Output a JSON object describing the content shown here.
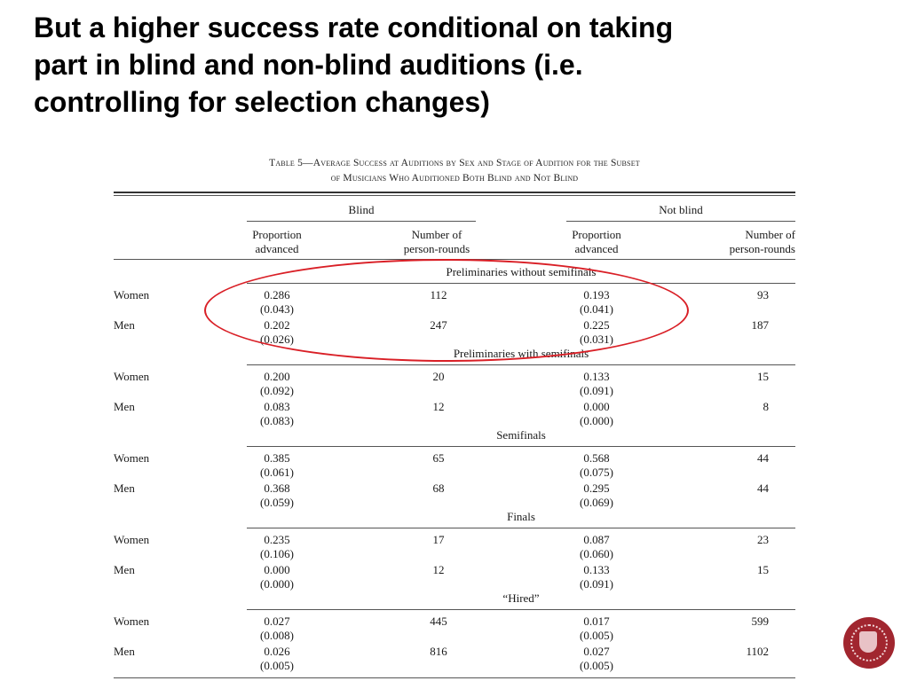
{
  "title_lines": [
    "But a higher success rate conditional on taking",
    "part in blind and non-blind auditions (i.e.",
    "controlling for selection changes)"
  ],
  "table": {
    "caption_line1": "Table 5—Average Success at Auditions by Sex and Stage of Audition for the Subset",
    "caption_line2": "of Musicians Who Auditioned Both Blind and Not Blind",
    "group_headers": {
      "blind": "Blind",
      "not_blind": "Not blind"
    },
    "col_headers": {
      "prop_line1": "Proportion",
      "prop_line2": "advanced",
      "num_line1": "Number of",
      "num_line2": "person-rounds"
    },
    "sections": [
      {
        "title": "Preliminaries without semifinals",
        "rows": [
          {
            "label": "Women",
            "blind_prop": "0.286",
            "blind_se": "(0.043)",
            "blind_n": "112",
            "nb_prop": "0.193",
            "nb_se": "(0.041)",
            "nb_n": "93"
          },
          {
            "label": "Men",
            "blind_prop": "0.202",
            "blind_se": "(0.026)",
            "blind_n": "247",
            "nb_prop": "0.225",
            "nb_se": "(0.031)",
            "nb_n": "187"
          }
        ]
      },
      {
        "title": "Preliminaries with semifinals",
        "rows": [
          {
            "label": "Women",
            "blind_prop": "0.200",
            "blind_se": "(0.092)",
            "blind_n": "20",
            "nb_prop": "0.133",
            "nb_se": "(0.091)",
            "nb_n": "15"
          },
          {
            "label": "Men",
            "blind_prop": "0.083",
            "blind_se": "(0.083)",
            "blind_n": "12",
            "nb_prop": "0.000",
            "nb_se": "(0.000)",
            "nb_n": "8"
          }
        ]
      },
      {
        "title": "Semifinals",
        "rows": [
          {
            "label": "Women",
            "blind_prop": "0.385",
            "blind_se": "(0.061)",
            "blind_n": "65",
            "nb_prop": "0.568",
            "nb_se": "(0.075)",
            "nb_n": "44"
          },
          {
            "label": "Men",
            "blind_prop": "0.368",
            "blind_se": "(0.059)",
            "blind_n": "68",
            "nb_prop": "0.295",
            "nb_se": "(0.069)",
            "nb_n": "44"
          }
        ]
      },
      {
        "title": "Finals",
        "rows": [
          {
            "label": "Women",
            "blind_prop": "0.235",
            "blind_se": "(0.106)",
            "blind_n": "17",
            "nb_prop": "0.087",
            "nb_se": "(0.060)",
            "nb_n": "23"
          },
          {
            "label": "Men",
            "blind_prop": "0.000",
            "blind_se": "(0.000)",
            "blind_n": "12",
            "nb_prop": "0.133",
            "nb_se": "(0.091)",
            "nb_n": "15"
          }
        ]
      },
      {
        "title": "“Hired”",
        "rows": [
          {
            "label": "Women",
            "blind_prop": "0.027",
            "blind_se": "(0.008)",
            "blind_n": "445",
            "nb_prop": "0.017",
            "nb_se": "(0.005)",
            "nb_n": "599"
          },
          {
            "label": "Men",
            "blind_prop": "0.026",
            "blind_se": "(0.005)",
            "blind_n": "816",
            "nb_prop": "0.027",
            "nb_se": "(0.005)",
            "nb_n": "1102"
          }
        ]
      }
    ]
  },
  "colors": {
    "highlight": "#d91f26",
    "seal": "#a1262f"
  },
  "icons": {
    "seal": "university-seal-icon"
  }
}
